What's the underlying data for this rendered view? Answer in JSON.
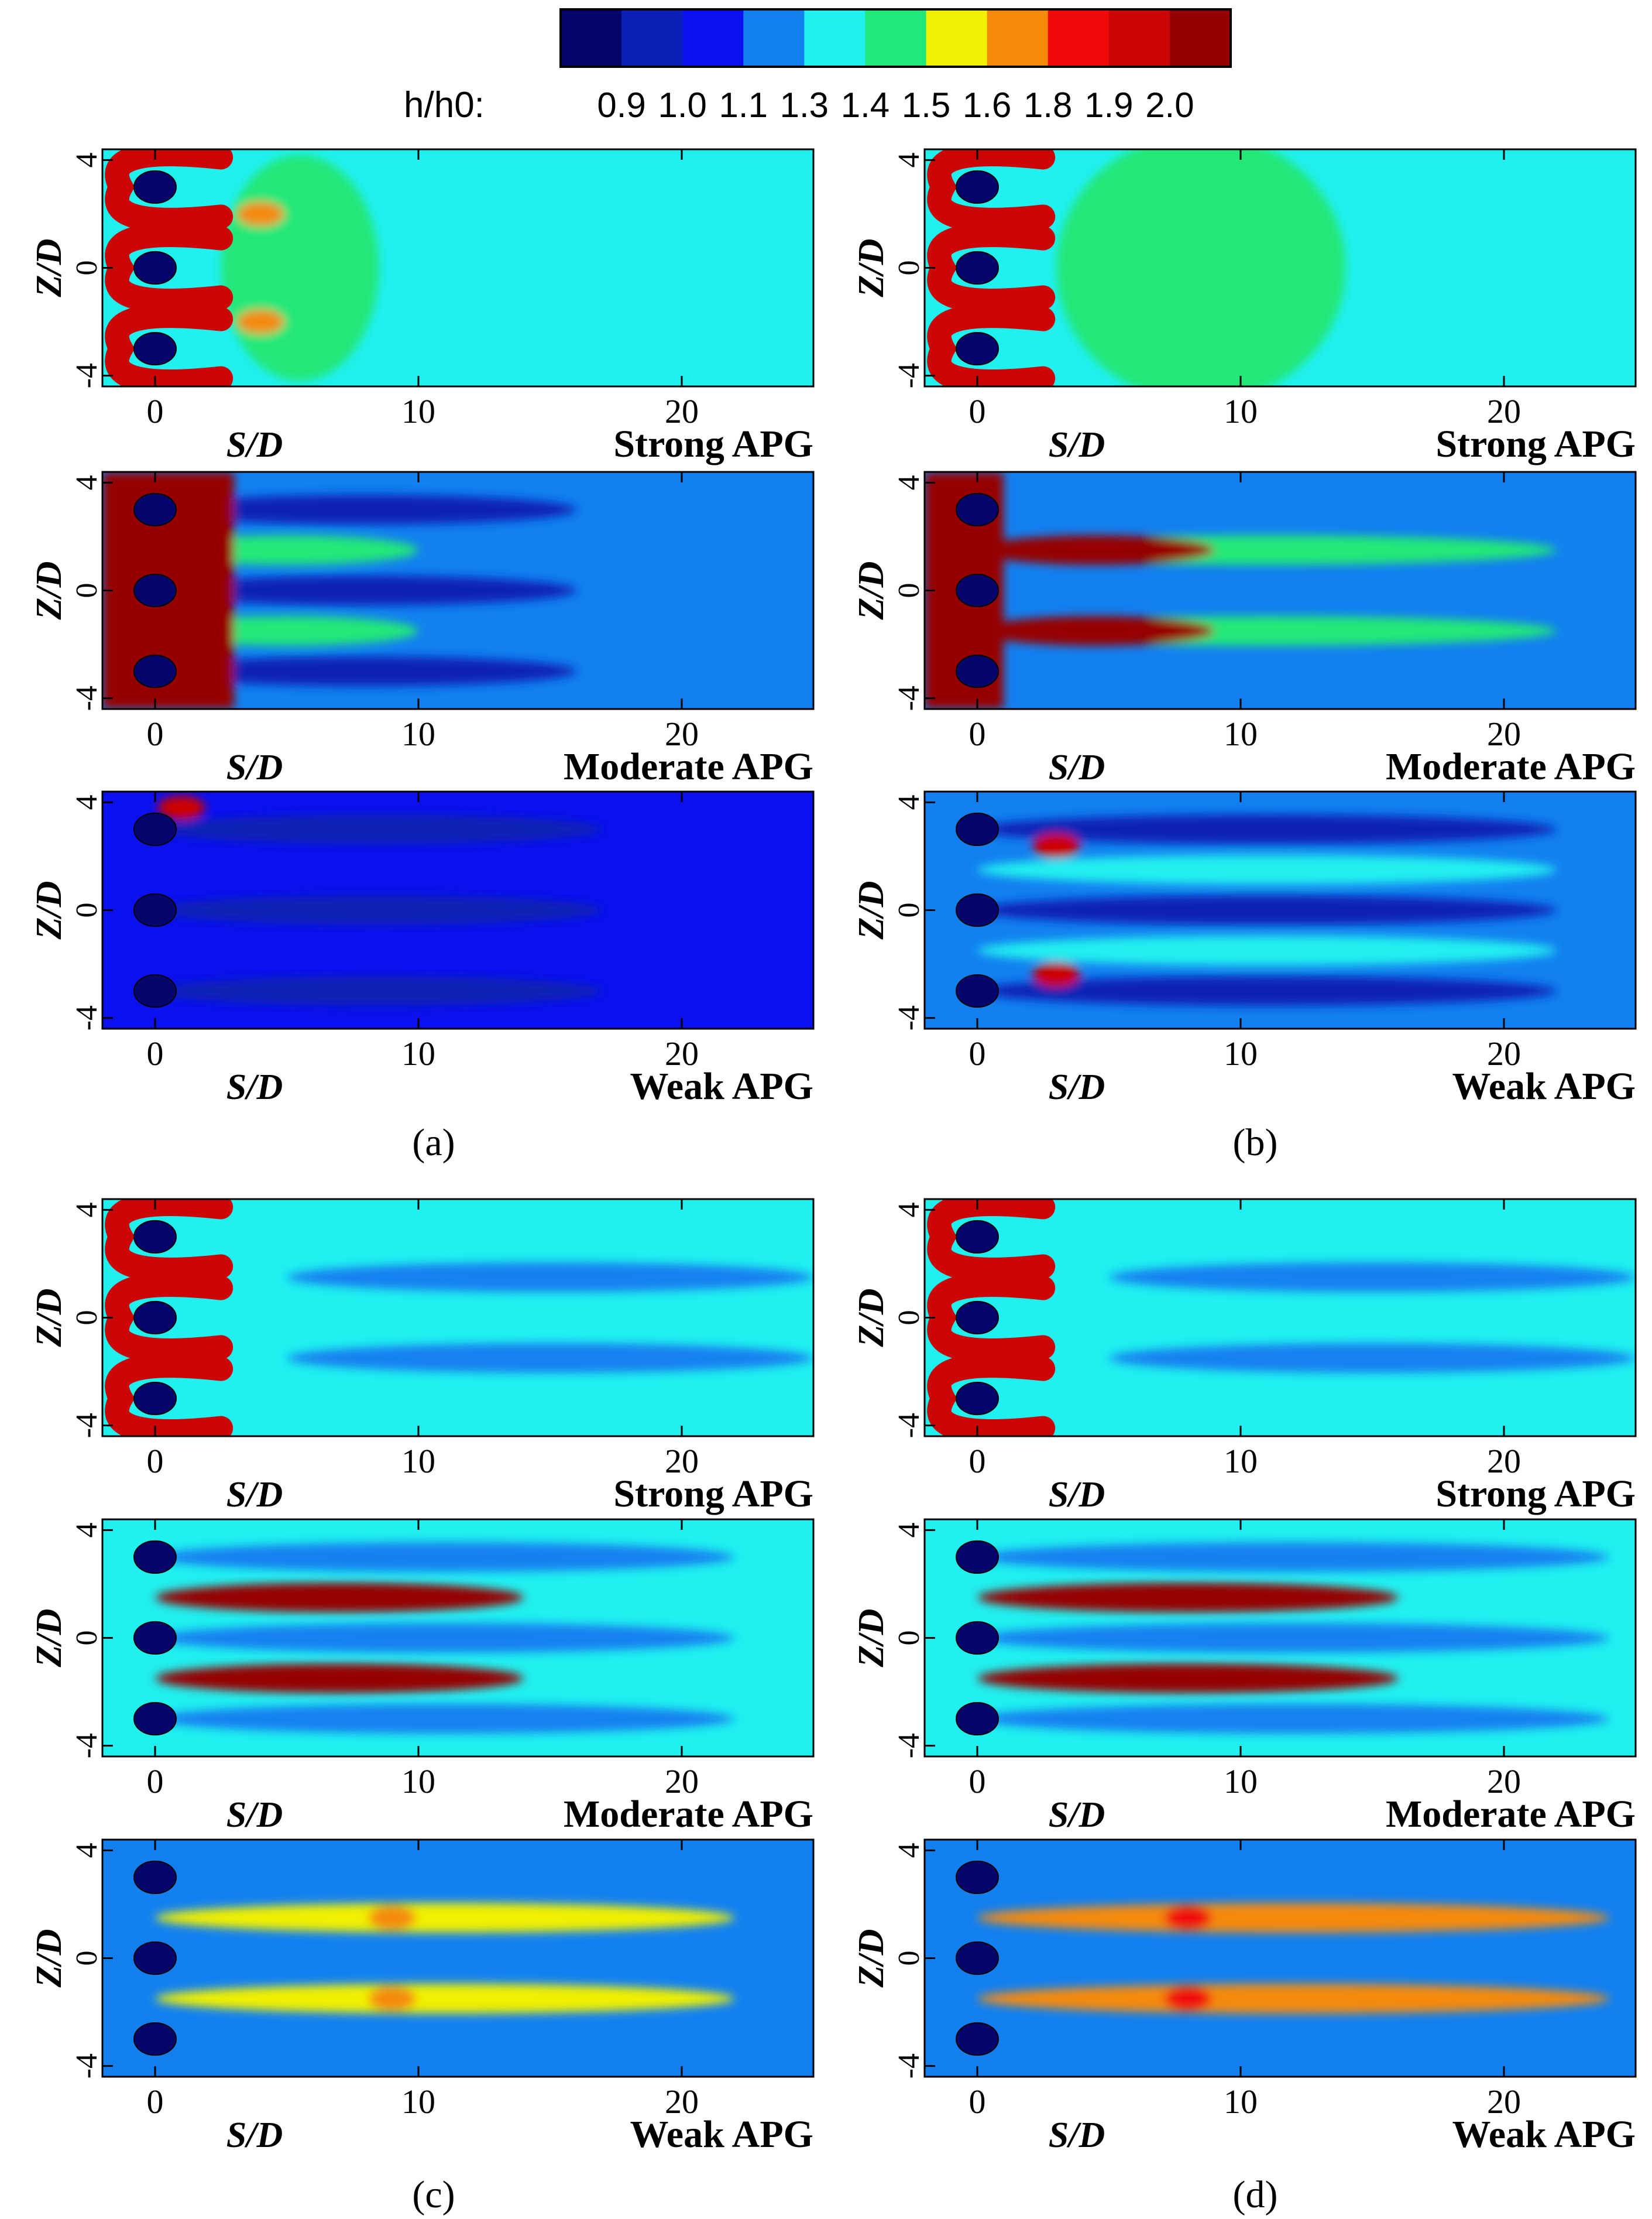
{
  "figure": {
    "colorbar": {
      "label": "h/h0:",
      "levels": [
        "0.9",
        "1.0",
        "1.1",
        "1.3",
        "1.4",
        "1.5",
        "1.6",
        "1.8",
        "1.9",
        "2.0"
      ],
      "colors": [
        "#05056e",
        "#0a20b4",
        "#0a10ee",
        "#1280f0",
        "#20f0f0",
        "#20e878",
        "#f0f000",
        "#f48a08",
        "#f00a0a",
        "#cc0606",
        "#960000"
      ]
    },
    "axes": {
      "xlabel": "S/D",
      "ylabel": "Z/D",
      "x_ticks": [
        0,
        10,
        20
      ],
      "y_ticks": [
        4,
        0,
        -4
      ],
      "xlim": [
        -2,
        25
      ],
      "ylim": [
        -4.4,
        4.4
      ],
      "hole_z": [
        3,
        0,
        -3
      ]
    },
    "panels": [
      {
        "label": "(a)",
        "letter": "a"
      },
      {
        "label": "(b)",
        "letter": "b"
      },
      {
        "label": "(c)",
        "letter": "c"
      },
      {
        "label": "(d)",
        "letter": "d"
      }
    ],
    "conditions": [
      "Strong APG",
      "Moderate APG",
      "Weak APG"
    ]
  },
  "chart_data": {
    "type": "heatmap",
    "variable": "h/h0",
    "description_levels": [
      0.9,
      1.0,
      1.1,
      1.3,
      1.4,
      1.5,
      1.6,
      1.8,
      1.9,
      2.0
    ],
    "xlabel": "S/D",
    "ylabel": "Z/D",
    "xlim": [
      -2,
      25
    ],
    "ylim": [
      -4.4,
      4.4
    ],
    "hole_positions": [
      {
        "s": 0,
        "z": 3
      },
      {
        "s": 0,
        "z": 0
      },
      {
        "s": 0,
        "z": -3
      }
    ],
    "subplots": [
      {
        "panel": "a",
        "condition": "Strong APG",
        "background_level": 1.3,
        "features": [
          {
            "type": "horseshoe",
            "s": 0,
            "z": 3,
            "level": 1.9
          },
          {
            "type": "horseshoe",
            "s": 0,
            "z": 0,
            "level": 1.9
          },
          {
            "type": "horseshoe",
            "s": 0,
            "z": -3,
            "level": 1.9
          },
          {
            "type": "band",
            "s0": 2.5,
            "s1": 8.5,
            "z": 0,
            "h": 4.2,
            "level": 1.4
          },
          {
            "type": "spot",
            "s": 4,
            "z": 2,
            "level": 1.6
          },
          {
            "type": "spot",
            "s": 4,
            "z": -2,
            "level": 1.6
          }
        ]
      },
      {
        "panel": "a",
        "condition": "Moderate APG",
        "background_level": 1.1,
        "features": [
          {
            "type": "streak",
            "s0": 0,
            "s1": 10,
            "z": 1.5,
            "level": 1.4
          },
          {
            "type": "streak",
            "s0": 0,
            "s1": 10,
            "z": -1.5,
            "level": 1.4
          },
          {
            "type": "streak",
            "s0": 0,
            "s1": 16,
            "z": 3,
            "level": 0.9
          },
          {
            "type": "streak",
            "s0": 0,
            "s1": 16,
            "z": 0,
            "level": 0.9
          },
          {
            "type": "streak",
            "s0": 0,
            "s1": 16,
            "z": -3,
            "level": 0.9
          },
          {
            "type": "core",
            "s0": -2,
            "s1": 3,
            "level": 2.0
          }
        ]
      },
      {
        "panel": "a",
        "condition": "Weak APG",
        "background_level": 1.0,
        "features": [
          {
            "type": "streak",
            "s0": 0,
            "s1": 17,
            "z": 3,
            "level": 0.9
          },
          {
            "type": "streak",
            "s0": 0,
            "s1": 17,
            "z": 0,
            "level": 0.9
          },
          {
            "type": "streak",
            "s0": 0,
            "s1": 17,
            "z": -3,
            "level": 0.9
          },
          {
            "type": "spot",
            "s": 1,
            "z": 3.8,
            "level": 1.9
          }
        ]
      },
      {
        "panel": "b",
        "condition": "Strong APG",
        "background_level": 1.3,
        "features": [
          {
            "type": "horseshoe",
            "s": 0,
            "z": 3,
            "level": 1.9
          },
          {
            "type": "horseshoe",
            "s": 0,
            "z": 0,
            "level": 1.9
          },
          {
            "type": "horseshoe",
            "s": 0,
            "z": -3,
            "level": 1.9
          },
          {
            "type": "band",
            "s0": 3,
            "s1": 14,
            "z": 0,
            "h": 5,
            "level": 1.4
          }
        ]
      },
      {
        "panel": "b",
        "condition": "Moderate APG",
        "background_level": 1.1,
        "features": [
          {
            "type": "streak",
            "s0": 0,
            "s1": 22,
            "z": 1.5,
            "level": 1.4
          },
          {
            "type": "streak",
            "s0": 0,
            "s1": 22,
            "z": -1.5,
            "level": 1.4
          },
          {
            "type": "streak",
            "s0": 0,
            "s1": 9,
            "z": 1.5,
            "level": 2.0
          },
          {
            "type": "streak",
            "s0": 0,
            "s1": 9,
            "z": -1.5,
            "level": 2.0
          },
          {
            "type": "core",
            "s0": -2,
            "s1": 1,
            "level": 2.0
          }
        ]
      },
      {
        "panel": "b",
        "condition": "Weak APG",
        "background_level": 1.1,
        "features": [
          {
            "type": "streak",
            "s0": 0,
            "s1": 22,
            "z": 1.5,
            "level": 1.3
          },
          {
            "type": "streak",
            "s0": 0,
            "s1": 22,
            "z": -1.5,
            "level": 1.3
          },
          {
            "type": "streak",
            "s0": 0,
            "s1": 22,
            "z": 3,
            "level": 0.9
          },
          {
            "type": "streak",
            "s0": 0,
            "s1": 22,
            "z": 0,
            "level": 0.9
          },
          {
            "type": "streak",
            "s0": 0,
            "s1": 22,
            "z": -3,
            "level": 0.9
          },
          {
            "type": "spot",
            "s": 3,
            "z": 2.4,
            "level": 1.9
          },
          {
            "type": "spot",
            "s": 3,
            "z": -2.4,
            "level": 1.9
          }
        ]
      },
      {
        "panel": "c",
        "condition": "Strong APG",
        "background_level": 1.3,
        "features": [
          {
            "type": "horseshoe",
            "s": 0,
            "z": 3,
            "level": 1.9
          },
          {
            "type": "horseshoe",
            "s": 0,
            "z": 0,
            "level": 1.9
          },
          {
            "type": "horseshoe",
            "s": 0,
            "z": -3,
            "level": 1.9
          },
          {
            "type": "streak",
            "s0": 5,
            "s1": 25,
            "z": 1.5,
            "level": 1.1
          },
          {
            "type": "streak",
            "s0": 5,
            "s1": 25,
            "z": -1.5,
            "level": 1.1
          }
        ]
      },
      {
        "panel": "c",
        "condition": "Moderate APG",
        "background_level": 1.3,
        "features": [
          {
            "type": "streak",
            "s0": 0,
            "s1": 14,
            "z": 1.5,
            "level": 2.0
          },
          {
            "type": "streak",
            "s0": 0,
            "s1": 14,
            "z": -1.5,
            "level": 2.0
          },
          {
            "type": "streak",
            "s0": 0,
            "s1": 22,
            "z": 3,
            "level": 1.1
          },
          {
            "type": "streak",
            "s0": 0,
            "s1": 22,
            "z": 0,
            "level": 1.1
          },
          {
            "type": "streak",
            "s0": 0,
            "s1": 22,
            "z": -3,
            "level": 1.1
          }
        ]
      },
      {
        "panel": "c",
        "condition": "Weak APG",
        "background_level": 1.1,
        "features": [
          {
            "type": "streak",
            "s0": 0,
            "s1": 22,
            "z": 1.5,
            "level": 1.5
          },
          {
            "type": "streak",
            "s0": 0,
            "s1": 22,
            "z": -1.5,
            "level": 1.5
          },
          {
            "type": "spot",
            "s": 9,
            "z": 1.5,
            "level": 1.6
          },
          {
            "type": "spot",
            "s": 9,
            "z": -1.5,
            "level": 1.6
          }
        ]
      },
      {
        "panel": "d",
        "condition": "Strong APG",
        "background_level": 1.3,
        "features": [
          {
            "type": "horseshoe",
            "s": 0,
            "z": 3,
            "level": 1.9
          },
          {
            "type": "horseshoe",
            "s": 0,
            "z": 0,
            "level": 1.9
          },
          {
            "type": "horseshoe",
            "s": 0,
            "z": -3,
            "level": 1.9
          },
          {
            "type": "streak",
            "s0": 5,
            "s1": 25,
            "z": 1.5,
            "level": 1.1
          },
          {
            "type": "streak",
            "s0": 5,
            "s1": 25,
            "z": -1.5,
            "level": 1.1
          }
        ]
      },
      {
        "panel": "d",
        "condition": "Moderate APG",
        "background_level": 1.3,
        "features": [
          {
            "type": "streak",
            "s0": 0,
            "s1": 16,
            "z": 1.5,
            "level": 2.0
          },
          {
            "type": "streak",
            "s0": 0,
            "s1": 16,
            "z": -1.5,
            "level": 2.0
          },
          {
            "type": "streak",
            "s0": 0,
            "s1": 24,
            "z": 3,
            "level": 1.1
          },
          {
            "type": "streak",
            "s0": 0,
            "s1": 24,
            "z": 0,
            "level": 1.1
          },
          {
            "type": "streak",
            "s0": 0,
            "s1": 24,
            "z": -3,
            "level": 1.1
          }
        ]
      },
      {
        "panel": "d",
        "condition": "Weak APG",
        "background_level": 1.1,
        "features": [
          {
            "type": "streak",
            "s0": 0,
            "s1": 24,
            "z": 1.5,
            "level": 1.6
          },
          {
            "type": "streak",
            "s0": 0,
            "s1": 24,
            "z": -1.5,
            "level": 1.6
          },
          {
            "type": "spot",
            "s": 8,
            "z": 1.5,
            "level": 1.8
          },
          {
            "type": "spot",
            "s": 8,
            "z": -1.5,
            "level": 1.8
          }
        ]
      }
    ]
  }
}
